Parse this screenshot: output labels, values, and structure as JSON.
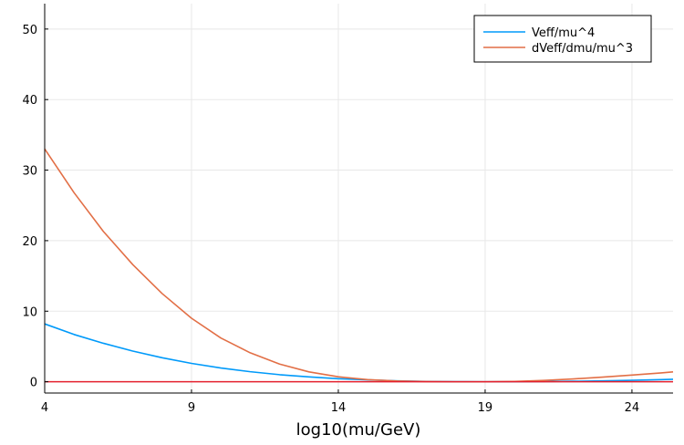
{
  "chart_data": {
    "type": "line",
    "title": "",
    "xlabel": "log10(mu/GeV)",
    "ylabel": "",
    "xlim": [
      4,
      25.4
    ],
    "ylim": [
      -1.6,
      53.6
    ],
    "xticks": [
      4,
      9,
      14,
      19,
      24
    ],
    "yticks": [
      0,
      10,
      20,
      30,
      40,
      50
    ],
    "grid": true,
    "legend_position": "top-right",
    "series": [
      {
        "name": "Veff/mu^4",
        "color": "#009AFA",
        "x": [
          4,
          5,
          6,
          7,
          8,
          9,
          10,
          11,
          12,
          13,
          14,
          15,
          16,
          17,
          18,
          19,
          20,
          21,
          22,
          23,
          24,
          25,
          25.4
        ],
        "y": [
          8.2,
          6.7,
          5.45,
          4.35,
          3.4,
          2.6,
          1.95,
          1.42,
          1.0,
          0.68,
          0.43,
          0.26,
          0.13,
          0.05,
          0.01,
          0.0,
          0.01,
          0.03,
          0.07,
          0.12,
          0.2,
          0.3,
          0.35
        ]
      },
      {
        "name": "dVeff/dmu/mu^3",
        "color": "#E26F46",
        "x": [
          4,
          5,
          6,
          7,
          8,
          9,
          10,
          11,
          12,
          13,
          14,
          15,
          16,
          17,
          18,
          19,
          20,
          21,
          22,
          23,
          24,
          25,
          25.4
        ],
        "y": [
          33.0,
          26.8,
          21.3,
          16.6,
          12.5,
          9.0,
          6.2,
          4.1,
          2.5,
          1.4,
          0.7,
          0.3,
          0.1,
          0.02,
          0.0,
          0.0,
          0.05,
          0.18,
          0.4,
          0.65,
          0.95,
          1.25,
          1.4
        ]
      },
      {
        "name": "",
        "color": "#E4202E",
        "x": [
          4,
          25.4
        ],
        "y": [
          0.0,
          0.0
        ]
      }
    ]
  }
}
